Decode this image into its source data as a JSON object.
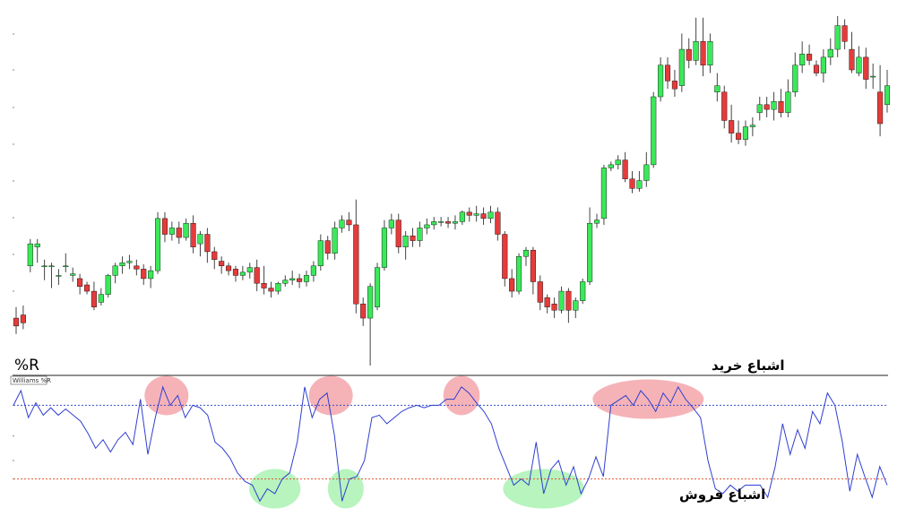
{
  "chart_data": [
    {
      "type": "candlestick",
      "title": "",
      "ylim": [
        0,
        100
      ],
      "colors": {
        "up": "#3be85a",
        "down": "#e53b3b",
        "outline": "#000000",
        "wick": "#444444"
      },
      "values": [
        [
          25,
          20,
          32,
          15
        ],
        [
          27,
          22,
          33,
          18
        ],
        [
          58,
          72,
          75,
          54
        ],
        [
          70,
          72,
          75,
          60
        ],
        [
          58,
          58,
          62,
          49
        ],
        [
          58,
          58,
          60,
          44
        ],
        [
          52,
          52,
          56,
          46
        ],
        [
          58,
          58,
          66,
          54
        ],
        [
          52,
          53,
          57,
          48
        ],
        [
          50,
          45,
          53,
          40
        ],
        [
          46,
          42,
          48,
          40
        ],
        [
          42,
          32,
          48,
          30
        ],
        [
          35,
          40,
          44,
          33
        ],
        [
          40,
          52,
          53,
          38
        ],
        [
          52,
          58,
          60,
          47
        ],
        [
          58,
          60,
          64,
          53
        ],
        [
          60,
          61,
          65,
          56
        ],
        [
          58,
          56,
          62,
          52
        ],
        [
          56,
          50,
          59,
          46
        ],
        [
          50,
          55,
          58,
          44
        ],
        [
          55,
          88,
          92,
          53
        ],
        [
          88,
          78,
          92,
          73
        ],
        [
          78,
          82,
          86,
          74
        ],
        [
          82,
          76,
          86,
          72
        ],
        [
          76,
          85,
          88,
          74
        ],
        [
          85,
          70,
          90,
          66
        ],
        [
          72,
          78,
          80,
          64
        ],
        [
          78,
          67,
          82,
          60
        ],
        [
          67,
          62,
          70,
          56
        ],
        [
          61,
          58,
          64,
          53
        ],
        [
          58,
          55,
          60,
          52
        ],
        [
          56,
          52,
          58,
          48
        ],
        [
          52,
          54,
          58,
          49
        ],
        [
          54,
          57,
          60,
          50
        ],
        [
          57,
          47,
          62,
          42
        ],
        [
          47,
          44,
          58,
          40
        ],
        [
          44,
          42,
          48,
          38
        ],
        [
          42,
          47,
          48,
          40
        ],
        [
          47,
          49,
          52,
          45
        ],
        [
          49,
          50,
          55,
          46
        ],
        [
          50,
          48,
          53,
          44
        ],
        [
          48,
          52,
          55,
          45
        ],
        [
          52,
          58,
          61,
          48
        ],
        [
          58,
          74,
          78,
          55
        ],
        [
          74,
          66,
          77,
          62
        ],
        [
          66,
          82,
          86,
          62
        ],
        [
          82,
          87,
          90,
          79
        ],
        [
          87,
          84,
          92,
          80
        ],
        [
          84,
          34,
          100,
          28
        ],
        [
          34,
          25,
          38,
          20
        ],
        [
          25,
          45,
          47,
          -5
        ],
        [
          32,
          57,
          60,
          30
        ],
        [
          57,
          82,
          87,
          55
        ],
        [
          82,
          87,
          91,
          78
        ],
        [
          87,
          70,
          91,
          66
        ],
        [
          70,
          77,
          80,
          62
        ],
        [
          77,
          74,
          82,
          70
        ],
        [
          74,
          82,
          86,
          70
        ],
        [
          82,
          84,
          88,
          78
        ],
        [
          84,
          86,
          89,
          81
        ],
        [
          86,
          86,
          89,
          83
        ],
        [
          86,
          85,
          89,
          82
        ],
        [
          85,
          86,
          90,
          81
        ],
        [
          86,
          92,
          93,
          84
        ],
        [
          92,
          90,
          95,
          86
        ],
        [
          90,
          91,
          96,
          86
        ],
        [
          91,
          88,
          95,
          84
        ],
        [
          88,
          92,
          96,
          85
        ],
        [
          92,
          78,
          95,
          74
        ],
        [
          78,
          50,
          80,
          45
        ],
        [
          50,
          42,
          56,
          38
        ],
        [
          42,
          64,
          66,
          40
        ],
        [
          64,
          68,
          70,
          58
        ],
        [
          68,
          48,
          70,
          40
        ],
        [
          48,
          35,
          52,
          30
        ],
        [
          38,
          32,
          40,
          28
        ],
        [
          34,
          30,
          38,
          25
        ],
        [
          30,
          42,
          45,
          28
        ],
        [
          42,
          30,
          44,
          22
        ],
        [
          30,
          36,
          38,
          25
        ],
        [
          36,
          48,
          50,
          34
        ],
        [
          48,
          85,
          95,
          46
        ],
        [
          85,
          87,
          91,
          82
        ],
        [
          88,
          120,
          122,
          84
        ],
        [
          120,
          122,
          124,
          118
        ],
        [
          122,
          125,
          128,
          119
        ],
        [
          125,
          113,
          130,
          111
        ],
        [
          113,
          107,
          118,
          104
        ],
        [
          107,
          112,
          118,
          105
        ],
        [
          112,
          122,
          130,
          108
        ],
        [
          122,
          165,
          168,
          120
        ],
        [
          165,
          185,
          190,
          162
        ],
        [
          185,
          175,
          190,
          170
        ],
        [
          175,
          170,
          182,
          165
        ],
        [
          172,
          195,
          205,
          168
        ],
        [
          195,
          188,
          202,
          183
        ],
        [
          188,
          200,
          215,
          185
        ],
        [
          200,
          185,
          215,
          178
        ],
        [
          185,
          200,
          205,
          180
        ],
        [
          168,
          172,
          180,
          162
        ],
        [
          168,
          150,
          172,
          145
        ],
        [
          150,
          142,
          160,
          136
        ],
        [
          142,
          138,
          150,
          135
        ],
        [
          138,
          146,
          150,
          134
        ],
        [
          146,
          147,
          152,
          140
        ],
        [
          155,
          160,
          165,
          150
        ],
        [
          160,
          157,
          165,
          152
        ],
        [
          157,
          162,
          168,
          150
        ],
        [
          162,
          155,
          170,
          152
        ],
        [
          155,
          168,
          176,
          152
        ],
        [
          168,
          185,
          193,
          165
        ],
        [
          185,
          192,
          200,
          180
        ],
        [
          192,
          188,
          198,
          185
        ],
        [
          185,
          180,
          188,
          178
        ],
        [
          180,
          190,
          195,
          174
        ],
        [
          190,
          195,
          202,
          185
        ],
        [
          195,
          210,
          216,
          190
        ],
        [
          210,
          200,
          214,
          195
        ],
        [
          195,
          182,
          206,
          180
        ],
        [
          180,
          190,
          197,
          178
        ],
        [
          190,
          176,
          196,
          170
        ],
        [
          178,
          178,
          186,
          170
        ],
        [
          168,
          148,
          185,
          140
        ],
        [
          160,
          172,
          182,
          155
        ]
      ]
    },
    {
      "type": "line",
      "title": "",
      "ylim": [
        -100,
        0
      ],
      "thresholds": [
        -20,
        -80
      ],
      "indicator_label": "%R",
      "small_tag": "Williams %R",
      "series": [
        {
          "name": "Williams %R",
          "color": "#2f3fd0",
          "values": [
            -20,
            -8,
            -30,
            -18,
            -28,
            -22,
            -28,
            -23,
            -28,
            -33,
            -43,
            -55,
            -48,
            -58,
            -48,
            -42,
            -52,
            -15,
            -60,
            -30,
            -5,
            -20,
            -12,
            -30,
            -20,
            -22,
            -28,
            -50,
            -55,
            -63,
            -75,
            -82,
            -85,
            -98,
            -88,
            -92,
            -80,
            -75,
            -50,
            -5,
            -30,
            -15,
            -10,
            -45,
            -98,
            -80,
            -78,
            -65,
            -30,
            -28,
            -35,
            -30,
            -25,
            -22,
            -20,
            -22,
            -20,
            -20,
            -15,
            -15,
            -5,
            -10,
            -18,
            -25,
            -35,
            -55,
            -70,
            -85,
            -80,
            -85,
            -50,
            -92,
            -72,
            -65,
            -85,
            -70,
            -92,
            -80,
            -62,
            -78,
            -20,
            -16,
            -12,
            -20,
            -8,
            -15,
            -25,
            -10,
            -18,
            -5,
            -15,
            -22,
            -30,
            -65,
            -88,
            -92,
            -85,
            -90,
            -85,
            -85,
            -85,
            -95,
            -70,
            -35,
            -60,
            -40,
            -55,
            -25,
            -35,
            -10,
            -20,
            -50,
            -90,
            -60,
            -78,
            -95,
            -70,
            -85
          ]
        }
      ],
      "annotations": {
        "overbought_label": "اشباع خرید",
        "oversold_label": "اشباع فروش"
      },
      "colors": {
        "overbought_line": "#3b4ec9",
        "oversold_line": "#e2552b",
        "overbought_highlight": "#f29aa0",
        "oversold_highlight": "#9ff0a8"
      }
    }
  ]
}
